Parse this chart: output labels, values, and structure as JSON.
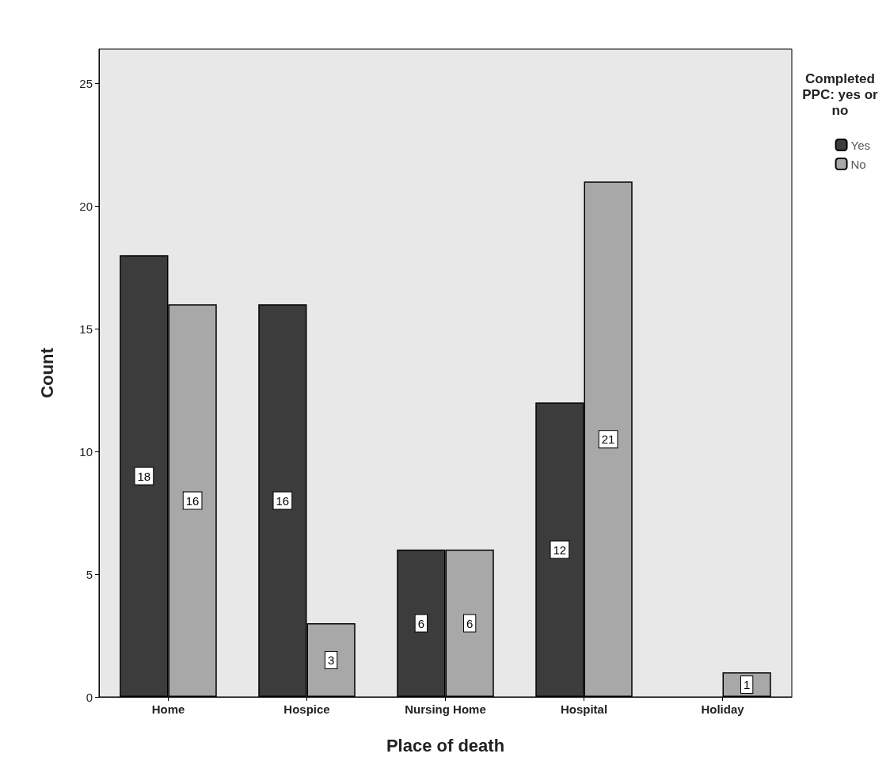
{
  "chart_data": {
    "type": "bar",
    "xlabel": "Place of death",
    "ylabel": "Count",
    "legend_title": "Completed PPC: yes or no",
    "legend": "top right",
    "grid": false,
    "data_labels": true,
    "categories": [
      "Home",
      "Hospice",
      "Nursing Home",
      "Hospital",
      "Holiday"
    ],
    "series": [
      {
        "name": "Yes",
        "color": "#3c3c3c",
        "values": [
          18,
          16,
          6,
          12,
          null
        ]
      },
      {
        "name": "No",
        "color": "#a8a8a8",
        "values": [
          16,
          3,
          6,
          21,
          1
        ]
      }
    ],
    "ylim": [
      0,
      26.4
    ],
    "yticks": [
      0,
      5,
      10,
      15,
      20,
      25
    ]
  }
}
